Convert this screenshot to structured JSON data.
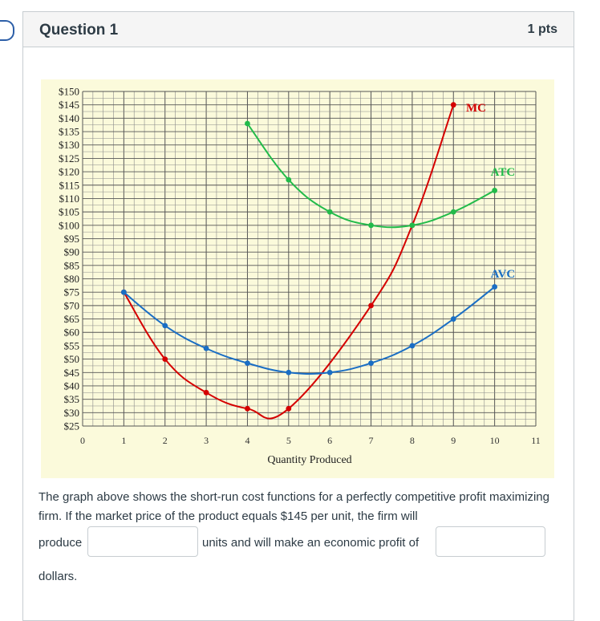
{
  "question": {
    "title": "Question 1",
    "points": "1 pts",
    "text": "The graph above shows the short-run cost functions for a perfectly competitive profit maximizing firm. If the market price of the product equals $145 per unit, the firm will",
    "word_produce": "produce",
    "word_units": "units and will make an economic profit of",
    "word_dollars": "dollars.",
    "answer_quantity": "",
    "answer_profit": ""
  },
  "chart_data": {
    "type": "line",
    "xlabel": "Quantity Produced",
    "ylabel": "",
    "xlim": [
      0,
      11
    ],
    "ylim": [
      25,
      150
    ],
    "x_ticks": [
      "0",
      "1",
      "2",
      "3",
      "4",
      "5",
      "6",
      "7",
      "8",
      "9",
      "10",
      "11"
    ],
    "y_ticks": [
      "$25",
      "$30",
      "$35",
      "$40",
      "$45",
      "$50",
      "$55",
      "$60",
      "$65",
      "$70",
      "$75",
      "$80",
      "$85",
      "$90",
      "$95",
      "$100",
      "$105",
      "$110",
      "$115",
      "$120",
      "$125",
      "$130",
      "$135",
      "$140",
      "$145",
      "$150"
    ],
    "background": "#fbfadb",
    "grid": true,
    "series": [
      {
        "name": "MC",
        "color": "#d50000",
        "x": [
          1,
          2,
          3,
          4,
          5,
          7,
          8,
          9
        ],
        "y": [
          75,
          50,
          37.5,
          31.5,
          31.5,
          70,
          100,
          145
        ]
      },
      {
        "name": "ATC",
        "color": "#22bb4a",
        "x": [
          4,
          5,
          6,
          7,
          8,
          9,
          10
        ],
        "y": [
          138,
          117,
          105,
          100,
          100,
          105,
          113
        ]
      },
      {
        "name": "AVC",
        "color": "#1a6ec4",
        "x": [
          1,
          2,
          3,
          4,
          5,
          6,
          7,
          8,
          9,
          10
        ],
        "y": [
          75,
          62.5,
          54,
          48.5,
          45,
          45,
          48.5,
          55,
          65,
          77
        ]
      }
    ]
  }
}
